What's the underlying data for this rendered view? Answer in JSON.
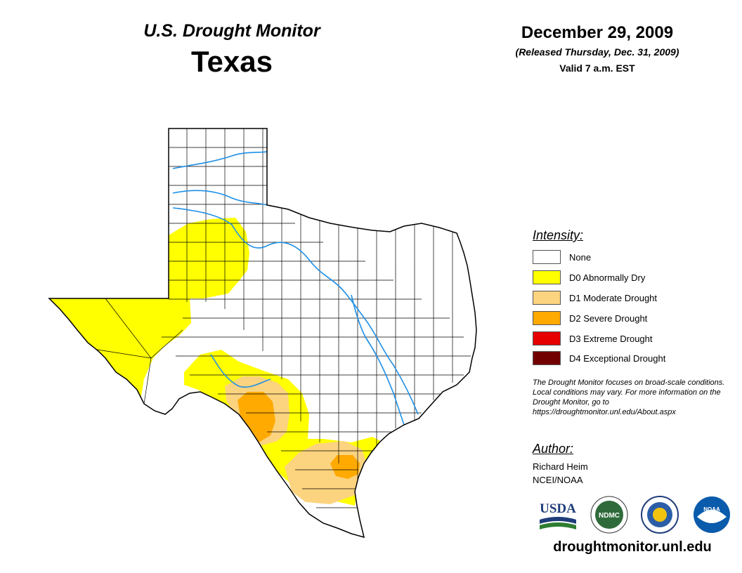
{
  "header": {
    "monitor_title": "U.S. Drought Monitor",
    "state": "Texas",
    "date": "December 29, 2009",
    "release_note": "(Released Thursday, Dec. 31, 2009)",
    "valid_time": "Valid 7 a.m. EST"
  },
  "legend": {
    "title": "Intensity:",
    "items": [
      {
        "label": "None",
        "color": "#ffffff"
      },
      {
        "label": "D0 Abnormally Dry",
        "color": "#ffff00"
      },
      {
        "label": "D1 Moderate Drought",
        "color": "#fcd37f"
      },
      {
        "label": "D2 Severe Drought",
        "color": "#ffaa00"
      },
      {
        "label": "D3 Extreme Drought",
        "color": "#e60000"
      },
      {
        "label": "D4 Exceptional Drought",
        "color": "#730000"
      }
    ]
  },
  "disclaimer": "The Drought Monitor focuses on broad-scale conditions. Local conditions may vary. For more information on the Drought Monitor, go to https://droughtmonitor.unl.edu/About.aspx",
  "author": {
    "title": "Author:",
    "name": "Richard Heim",
    "org": "NCEI/NOAA"
  },
  "logos": {
    "usda": "USDA",
    "ndmc": "NDMC",
    "noaa": "NOAA"
  },
  "footer": {
    "url": "droughtmonitor.unl.edu"
  },
  "colors": {
    "river": "#1f8fe6",
    "county_line": "#000000"
  }
}
